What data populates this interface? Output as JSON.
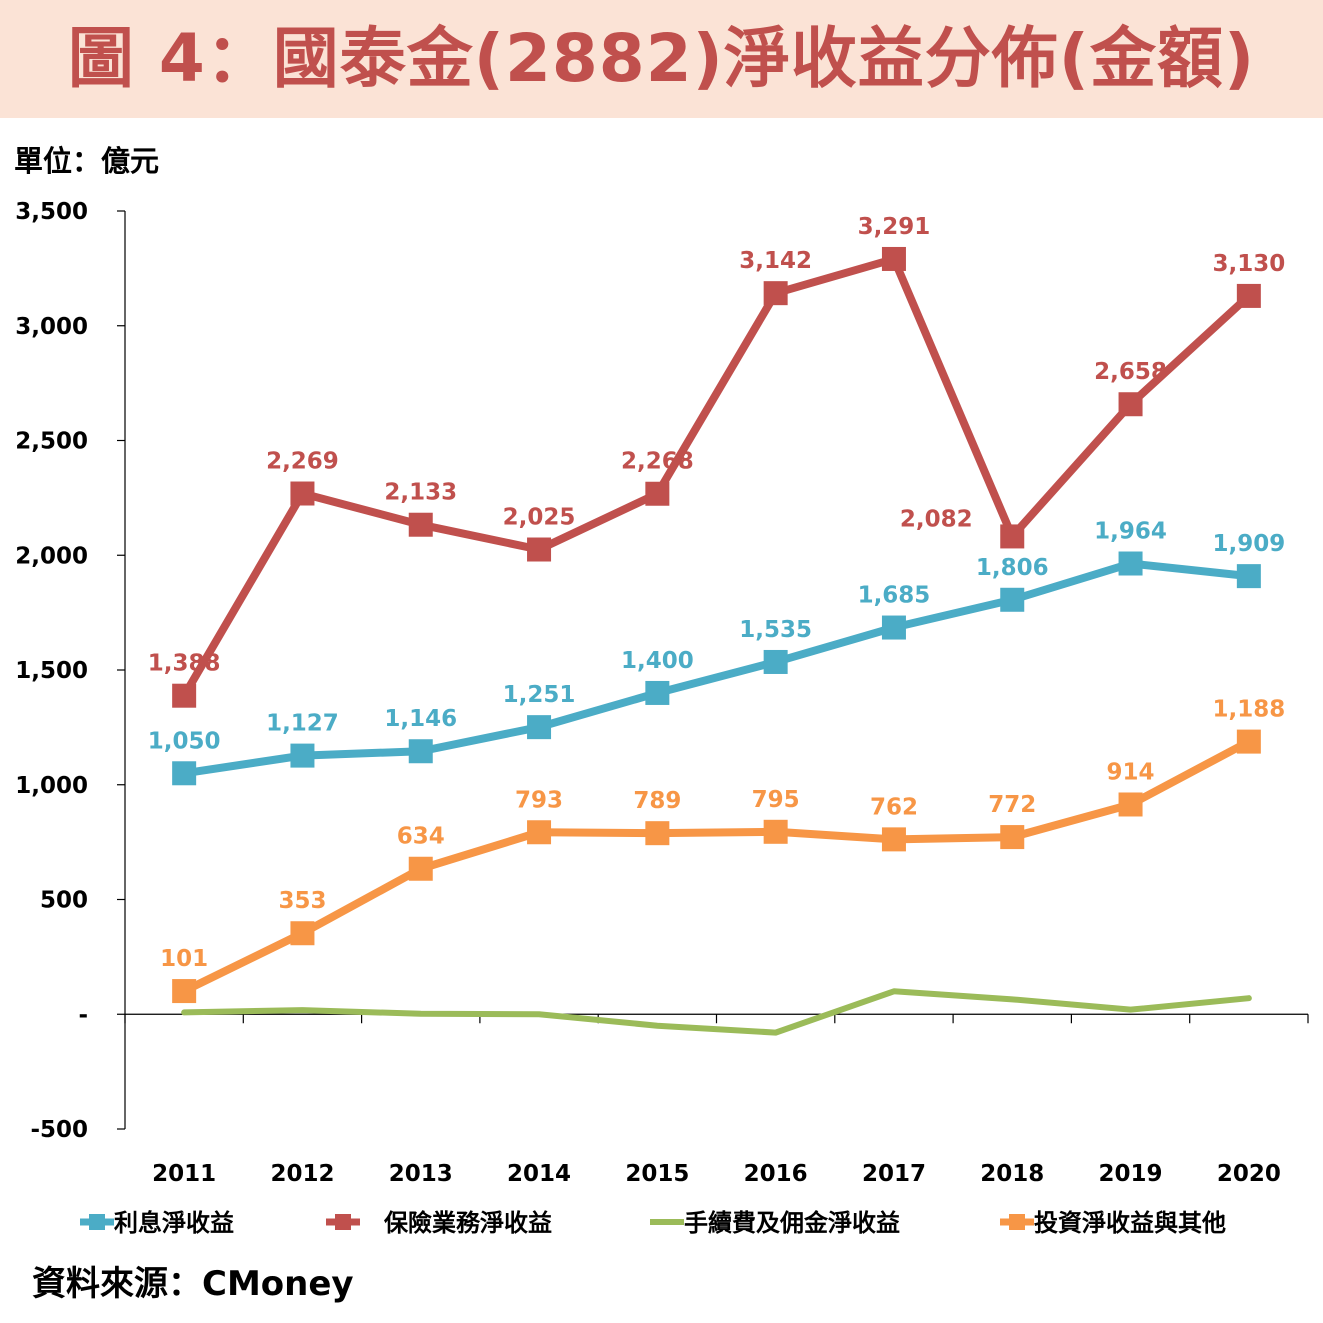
{
  "title": "圖 4：國泰金(2882)淨收益分佈(金額)",
  "unit_label": "單位：億元",
  "source_label": "資料來源：CMoney",
  "chart_data": {
    "type": "line",
    "x": [
      "2011",
      "2012",
      "2013",
      "2014",
      "2015",
      "2016",
      "2017",
      "2018",
      "2019",
      "2020"
    ],
    "ylim": [
      -500,
      3500
    ],
    "yticks": [
      -500,
      0,
      500,
      1000,
      1500,
      2000,
      2500,
      3000,
      3500
    ],
    "ytick_labels": [
      "-500",
      "-",
      "500",
      "1,000",
      "1,500",
      "2,000",
      "2,500",
      "3,000",
      "3,500"
    ],
    "grid": false,
    "legend_position": "bottom",
    "series": [
      {
        "name": "利息淨收益",
        "color": "#4bacc6",
        "marker": "square",
        "values": [
          1050,
          1127,
          1146,
          1251,
          1400,
          1535,
          1685,
          1806,
          1964,
          1909
        ],
        "labels": [
          "1,050",
          "1,127",
          "1,146",
          "1,251",
          "1,400",
          "1,535",
          "1,685",
          "1,806",
          "1,964",
          "1,909"
        ]
      },
      {
        "name": "保險業務淨收益",
        "color": "#c0504d",
        "marker": "square",
        "values": [
          1388,
          2269,
          2133,
          2025,
          2268,
          3142,
          3291,
          2082,
          2658,
          3130
        ],
        "labels": [
          "1,388",
          "2,269",
          "2,133",
          "2,025",
          "2,268",
          "3,142",
          "3,291",
          "2,082",
          "2,658",
          "3,130"
        ]
      },
      {
        "name": "手續費及佣金淨收益",
        "color": "#9bbb59",
        "marker": "none",
        "values": [
          8,
          18,
          2,
          0,
          -50,
          -80,
          100,
          65,
          20,
          70
        ],
        "labels": []
      },
      {
        "name": "投資淨收益與其他",
        "color": "#f79646",
        "marker": "square",
        "values": [
          101,
          353,
          634,
          793,
          789,
          795,
          762,
          772,
          914,
          1188
        ],
        "labels": [
          "101",
          "353",
          "634",
          "793",
          "789",
          "795",
          "762",
          "772",
          "914",
          "1,188"
        ]
      }
    ]
  }
}
